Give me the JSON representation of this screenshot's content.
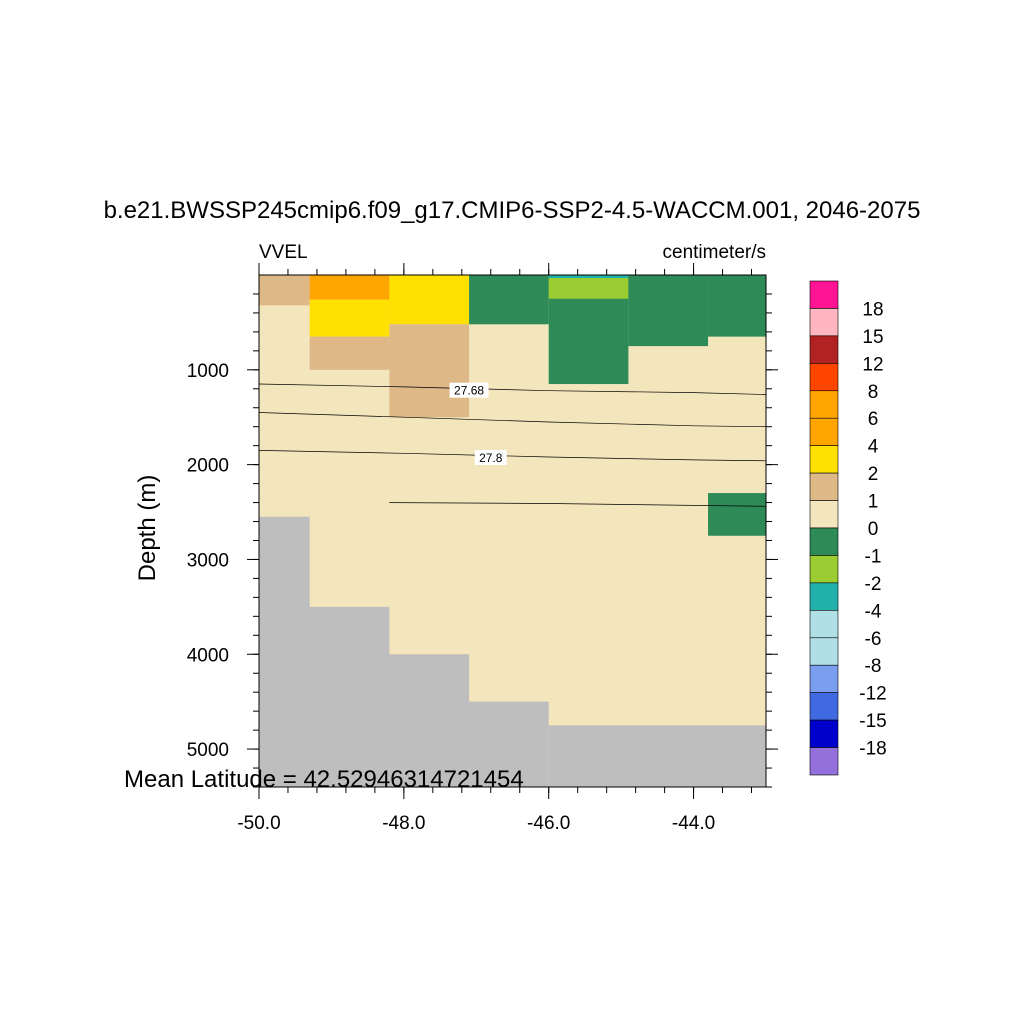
{
  "chart_data": {
    "type": "heatmap",
    "title": "b.e21.BWSSP245cmip6.f09_g17.CMIP6-SSP2-4.5-WACCM.001, 2046-2075",
    "variable": "VVEL",
    "units": "centimeter/s",
    "ylabel": "Depth (m)",
    "xlabel": "",
    "xlim": [
      -50.0,
      -43.0
    ],
    "ylim": [
      5400,
      0
    ],
    "x_ticks": [
      "-50.0",
      "-48.0",
      "-46.0",
      "-44.0"
    ],
    "x_tick_values": [
      -50,
      -48,
      -46,
      -44
    ],
    "y_ticks": [
      "1000",
      "2000",
      "3000",
      "4000",
      "5000"
    ],
    "y_tick_values": [
      1000,
      2000,
      3000,
      4000,
      5000
    ],
    "annotation": "Mean Latitude = 42.52946314721454",
    "background_color": "#f3e5bc",
    "land_color": "#bebebe",
    "cells": [
      {
        "x0": -50.0,
        "x1": -49.3,
        "d0": 0,
        "d1": 320,
        "color": "#deb887",
        "value_bin": "1 to 2"
      },
      {
        "x0": -49.3,
        "x1": -48.2,
        "d0": 0,
        "d1": 260,
        "color": "#ffa500",
        "value_bin": "4 to 6"
      },
      {
        "x0": -49.3,
        "x1": -48.2,
        "d0": 260,
        "d1": 650,
        "color": "#ffe000",
        "value_bin": "2 to 4"
      },
      {
        "x0": -48.2,
        "x1": -47.1,
        "d0": 0,
        "d1": 520,
        "color": "#ffe000",
        "value_bin": "2 to 4"
      },
      {
        "x0": -49.3,
        "x1": -48.2,
        "d0": 650,
        "d1": 1000,
        "color": "#deb887",
        "value_bin": "1 to 2"
      },
      {
        "x0": -48.2,
        "x1": -47.1,
        "d0": 520,
        "d1": 1500,
        "color": "#deb887",
        "value_bin": "1 to 2"
      },
      {
        "x0": -47.1,
        "x1": -46.0,
        "d0": 0,
        "d1": 520,
        "color": "#2e8b57",
        "value_bin": "-1 to 0"
      },
      {
        "x0": -46.0,
        "x1": -44.9,
        "d0": 0,
        "d1": 1150,
        "color": "#2e8b57",
        "value_bin": "-1 to 0"
      },
      {
        "x0": -46.0,
        "x1": -44.9,
        "d0": 0,
        "d1": 250,
        "color": "#9acd32",
        "value_bin": "-2 to -1"
      },
      {
        "x0": -44.9,
        "x1": -43.8,
        "d0": 0,
        "d1": 750,
        "color": "#2e8b57",
        "value_bin": "-1 to 0"
      },
      {
        "x0": -43.8,
        "x1": -43.0,
        "d0": 0,
        "d1": 650,
        "color": "#2e8b57",
        "value_bin": "-1 to 0"
      },
      {
        "x0": -43.8,
        "x1": -43.0,
        "d0": 2300,
        "d1": 2750,
        "color": "#2e8b57",
        "value_bin": "-1 to 0"
      }
    ],
    "land": [
      {
        "x0": -50.0,
        "x1": -49.3,
        "d0": 2550,
        "d1": 5400
      },
      {
        "x0": -49.3,
        "x1": -48.2,
        "d0": 3500,
        "d1": 5400
      },
      {
        "x0": -48.2,
        "x1": -47.1,
        "d0": 4000,
        "d1": 5400
      },
      {
        "x0": -47.1,
        "x1": -46.0,
        "d0": 4500,
        "d1": 5400
      },
      {
        "x0": -46.0,
        "x1": -43.0,
        "d0": 4750,
        "d1": 5400
      }
    ],
    "contours": [
      {
        "label": "27.68",
        "label_at": [
          -47.1,
          1220
        ],
        "points": [
          [
            -50.0,
            1150
          ],
          [
            -48.0,
            1180
          ],
          [
            -46.0,
            1220
          ],
          [
            -44.0,
            1240
          ],
          [
            -43.0,
            1260
          ]
        ]
      },
      {
        "label": "",
        "label_at": null,
        "points": [
          [
            -50.0,
            1450
          ],
          [
            -48.0,
            1500
          ],
          [
            -46.0,
            1550
          ],
          [
            -44.0,
            1590
          ],
          [
            -43.0,
            1600
          ]
        ]
      },
      {
        "label": "27.8",
        "label_at": [
          -46.8,
          1930
        ],
        "points": [
          [
            -50.0,
            1850
          ],
          [
            -48.0,
            1880
          ],
          [
            -46.0,
            1920
          ],
          [
            -44.0,
            1950
          ],
          [
            -43.0,
            1960
          ]
        ]
      },
      {
        "label": "",
        "label_at": null,
        "points": [
          [
            -48.2,
            2400
          ],
          [
            -46.0,
            2410
          ],
          [
            -44.0,
            2430
          ],
          [
            -43.0,
            2440
          ]
        ]
      }
    ],
    "colorbar": {
      "colors": [
        "#ff1493",
        "#ffb6c1",
        "#b22222",
        "#ff4500",
        "#ffa500",
        "#ffa500",
        "#ffe000",
        "#deb887",
        "#f3e5bc",
        "#2e8b57",
        "#9acd32",
        "#20b2aa",
        "#b0e0e6",
        "#b0e0e6",
        "#7b9ff0",
        "#4169e1",
        "#0000cd",
        "#9370db"
      ],
      "labels": [
        "18",
        "15",
        "12",
        "8",
        "6",
        "4",
        "2",
        "1",
        "0",
        "-1",
        "-2",
        "-4",
        "-6",
        "-8",
        "-12",
        "-15",
        "-18"
      ]
    }
  }
}
